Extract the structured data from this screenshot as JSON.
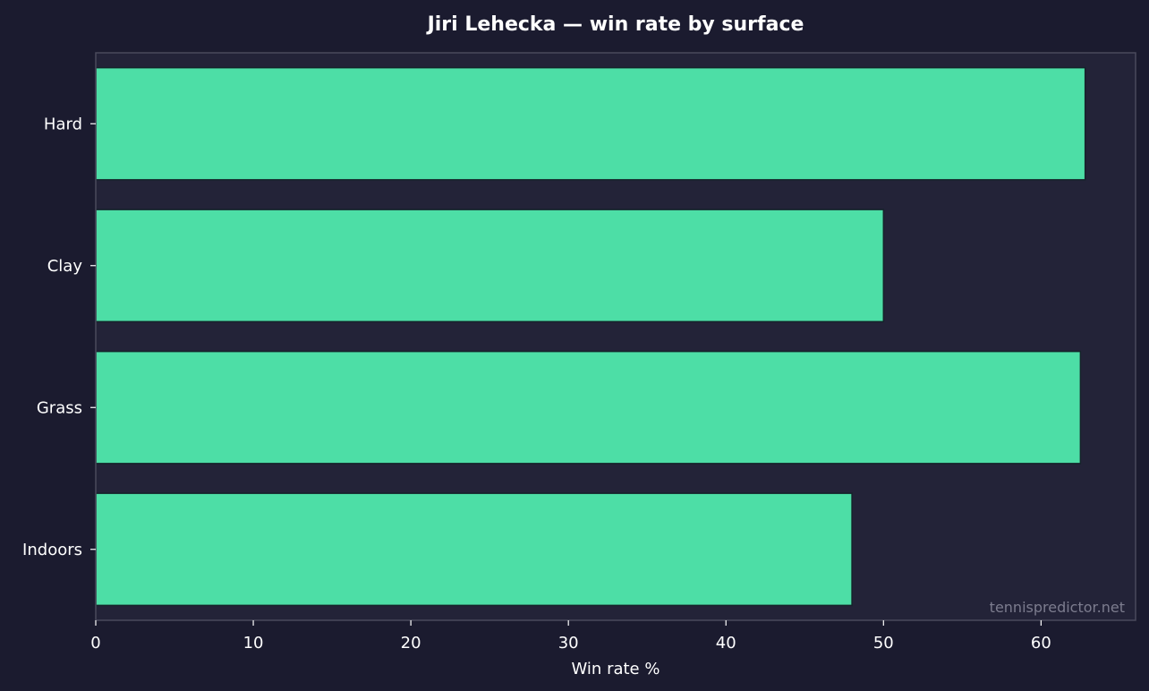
{
  "chart_data": {
    "type": "bar",
    "orientation": "horizontal",
    "title": "Jiri Lehecka — win rate by surface",
    "xlabel": "Win rate %",
    "ylabel": "",
    "categories": [
      "Hard",
      "Clay",
      "Grass",
      "Indoors"
    ],
    "values": [
      62.8,
      50.0,
      62.5,
      48.0
    ],
    "xlim": [
      0,
      66
    ],
    "xticks": [
      0,
      10,
      20,
      30,
      40,
      50,
      60
    ],
    "grid": false,
    "watermark": "tennispredictor.net",
    "colors": {
      "bar": "#4ddea6",
      "bar_edge": "#15232a",
      "plot_bg": "#232338",
      "figure_bg": "#1b1b2f",
      "spine": "#4a4a5c",
      "text": "#ffffff",
      "watermark": "#7c7c8e"
    }
  }
}
